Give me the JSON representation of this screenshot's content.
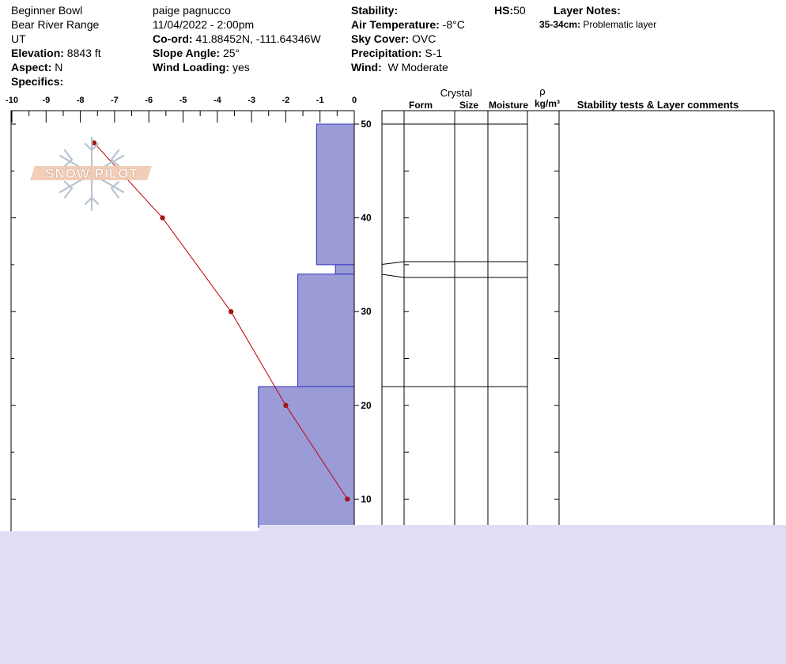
{
  "header": {
    "location": "Beginner Bowl",
    "range": "Bear River Range",
    "state": "UT",
    "elevation_label": "Elevation:",
    "elevation_value": "8843 ft",
    "aspect_label": "Aspect:",
    "aspect_value": "N",
    "specifics_label": "Specifics:",
    "observer": "paige pagnucco",
    "datetime": "11/04/2022 - 2:00pm",
    "coord_label": "Co-ord:",
    "coord_value": "41.88452N, -111.64346W",
    "slope_label": "Slope Angle:",
    "slope_value": "25°",
    "wind_loading_label": "Wind Loading:",
    "wind_loading_value": "yes",
    "stability_label": "Stability:",
    "air_temp_label": "Air Temperature:",
    "air_temp_value": "-8°C",
    "sky_cover_label": "Sky Cover:",
    "sky_cover_value": "OVC",
    "precip_label": "Precipitation:",
    "precip_value": "S-1",
    "wind_label": "Wind:",
    "wind_value": "W Moderate",
    "hs_label": "HS:",
    "hs_value": "50",
    "layer_notes_label": "Layer Notes:",
    "layer_note_depth": "35-34cm:",
    "layer_note_text": "Problematic layer"
  },
  "columns": {
    "crystal": "Crystal",
    "form": "Form",
    "size": "Size",
    "moisture": "Moisture",
    "rho": "ρ",
    "density_unit": "kg/m³",
    "stability_comments": "Stability tests & Layer comments"
  },
  "logo_text": "SNOW PILOT",
  "colors": {
    "hardness_fill": "#9b9bd8",
    "hardness_stroke": "#3030c0",
    "temp_line": "#c00000",
    "band": "#e0def4"
  },
  "chart_data": {
    "type": "line",
    "temperature_axis": {
      "ticks": [
        -10,
        -9,
        -8,
        -7,
        -6,
        -5,
        -4,
        -3,
        -2,
        -1,
        0
      ],
      "range": [
        -10,
        0
      ]
    },
    "height_axis": {
      "ticks": [
        50,
        40,
        30,
        20,
        10
      ],
      "range": [
        7,
        51
      ]
    },
    "temperature_profile": [
      {
        "height": 48,
        "temp": -7.6
      },
      {
        "height": 40,
        "temp": -5.6
      },
      {
        "height": 30,
        "temp": -3.6
      },
      {
        "height": 20,
        "temp": -2.0
      },
      {
        "height": 10,
        "temp": -0.2
      }
    ],
    "hardness_layers": [
      {
        "top": 50,
        "bottom": 35,
        "hardness": -1.1
      },
      {
        "top": 35,
        "bottom": 34,
        "hardness": -0.55
      },
      {
        "top": 34,
        "bottom": 22,
        "hardness": -1.65
      },
      {
        "top": 22,
        "bottom": 7,
        "hardness": -2.8
      }
    ],
    "layer_boundaries": [
      50,
      35.3,
      33.7,
      22
    ]
  }
}
